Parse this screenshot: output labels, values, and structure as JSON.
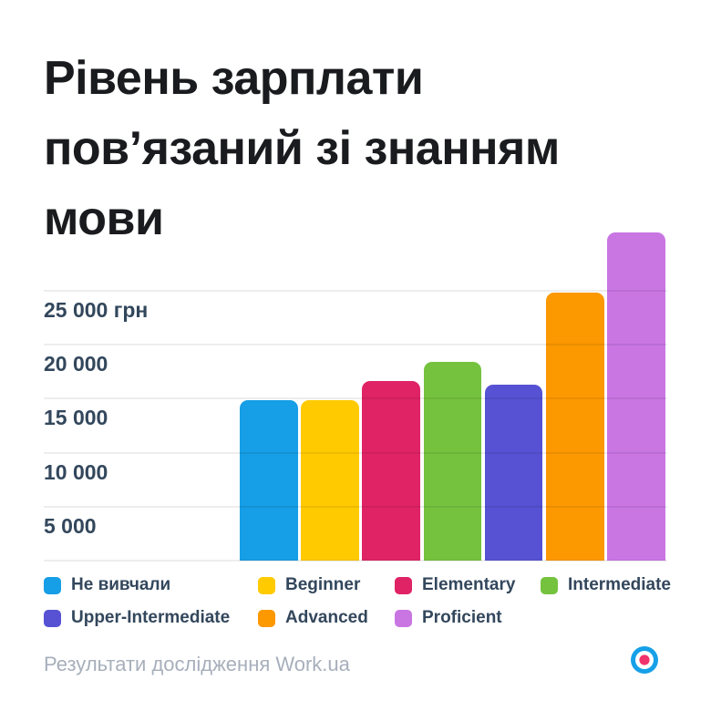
{
  "title": {
    "full": "Рівень зарплати пов’язаний зі знанням мови",
    "lines": [
      "Рівень зарплати",
      "пов’язаний зі знанням",
      "мови"
    ]
  },
  "footer": {
    "text": "Результати дослідження Work.ua"
  },
  "logo": {
    "name": "Work.ua",
    "ring_color": "#16a0e8",
    "dot_color": "#f0336b"
  },
  "colors": {
    "background": "#ffffff",
    "title_text": "#1a1b1e",
    "axis_text": "#33475c",
    "footer_text": "#a7afbb"
  },
  "chart_data": {
    "type": "bar",
    "title": "Рівень зарплати пов’язаний зі знанням мови",
    "unit": "грн",
    "categories": [
      "Не вивчали",
      "Beginner",
      "Elementary",
      "Intermediate",
      "Upper-Intermediate",
      "Advanced",
      "Proficient"
    ],
    "series": [
      {
        "id": "no-english",
        "label": "Не вивчали",
        "value": 14900,
        "color": "#169ee6"
      },
      {
        "id": "beginner",
        "label": "Beginner",
        "value": 14850,
        "color": "#ffca00"
      },
      {
        "id": "elementary",
        "label": "Elementary",
        "value": 16600,
        "color": "#df2365"
      },
      {
        "id": "intermediate",
        "label": "Intermediate",
        "value": 18450,
        "color": "#74c23e"
      },
      {
        "id": "upper-intermediate",
        "label": "Upper-Intermediate",
        "value": 16300,
        "color": "#5652d3"
      },
      {
        "id": "advanced",
        "label": "Advanced",
        "value": 24850,
        "color": "#fc9800"
      },
      {
        "id": "proficient",
        "label": "Proficient",
        "value": 30400,
        "color": "#c976e3"
      }
    ],
    "y_ticks": [
      {
        "label": "25 000 грн",
        "value": 25000
      },
      {
        "label": "20 000",
        "value": 20000
      },
      {
        "label": "15 000",
        "value": 15000
      },
      {
        "label": "10 000",
        "value": 10000
      },
      {
        "label": "5 000",
        "value": 5000
      }
    ],
    "ylim": [
      0,
      30500
    ],
    "grid": true,
    "legend_position": "bottom"
  }
}
